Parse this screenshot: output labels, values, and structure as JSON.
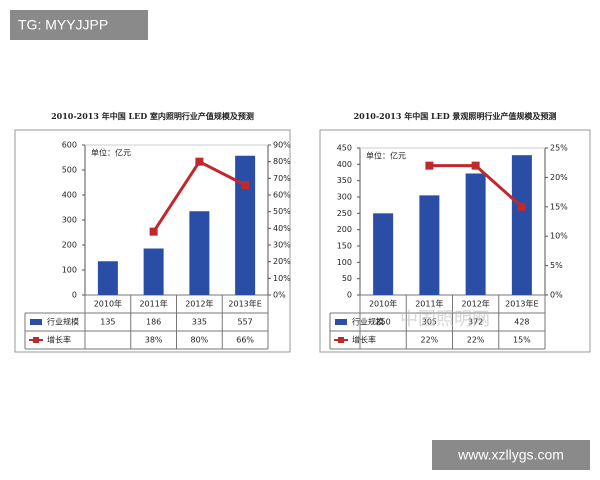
{
  "overlay": {
    "tag": "TG: MYYJJPP",
    "site": "www.xzllygs.com",
    "watermark": "中国照明网"
  },
  "chart_data": [
    {
      "type": "bar",
      "title": "2010-2013 年中国 LED 室内照明行业产值规模及预测",
      "unit": "单位：亿元",
      "categories": [
        "2010年",
        "2011年",
        "2012年",
        "2013年E"
      ],
      "series": [
        {
          "name": "行业规模",
          "color": "#2a4ea6",
          "values": [
            135,
            186,
            335,
            557
          ]
        },
        {
          "name": "增长率",
          "color": "#c0282d",
          "axis": "y2",
          "type": "line",
          "values": [
            null,
            38,
            80,
            66
          ],
          "value_labels": [
            null,
            "38%",
            "80%",
            "66%"
          ]
        }
      ],
      "ylim": [
        0,
        600
      ],
      "yticks": [
        0,
        100,
        200,
        300,
        400,
        500,
        600
      ],
      "y2lim": [
        0,
        90
      ],
      "y2ticks": [
        {
          "value": 0,
          "label": "0%"
        },
        {
          "value": 10,
          "label": "10%"
        },
        {
          "value": 20,
          "label": "20%"
        },
        {
          "value": 30,
          "label": "30%"
        },
        {
          "value": 40,
          "label": "40%"
        },
        {
          "value": 50,
          "label": "50%"
        },
        {
          "value": 60,
          "label": "60%"
        },
        {
          "value": 70,
          "label": "70%"
        },
        {
          "value": 80,
          "label": "80%"
        },
        {
          "value": 90,
          "label": "90%"
        }
      ],
      "grid": false
    },
    {
      "type": "bar",
      "title": "2010-2013 年中国 LED 景观照明行业产值规模及预测",
      "unit": "单位：亿元",
      "categories": [
        "2010年",
        "2011年",
        "2012年",
        "2013年E"
      ],
      "series": [
        {
          "name": "行业规模",
          "color": "#2a4ea6",
          "values": [
            250,
            305,
            372,
            428
          ]
        },
        {
          "name": "增长率",
          "color": "#c0282d",
          "axis": "y2",
          "type": "line",
          "values": [
            null,
            22,
            22,
            15
          ],
          "value_labels": [
            null,
            "22%",
            "22%",
            "15%"
          ]
        }
      ],
      "ylim": [
        0,
        450
      ],
      "yticks": [
        0,
        50,
        100,
        150,
        200,
        250,
        300,
        350,
        400,
        450
      ],
      "y2lim": [
        0,
        25
      ],
      "y2ticks": [
        {
          "value": 0,
          "label": "0%"
        },
        {
          "value": 5,
          "label": "5%"
        },
        {
          "value": 10,
          "label": "10%"
        },
        {
          "value": 15,
          "label": "15%"
        },
        {
          "value": 20,
          "label": "20%"
        },
        {
          "value": 25,
          "label": "25%"
        }
      ],
      "grid": false
    }
  ]
}
